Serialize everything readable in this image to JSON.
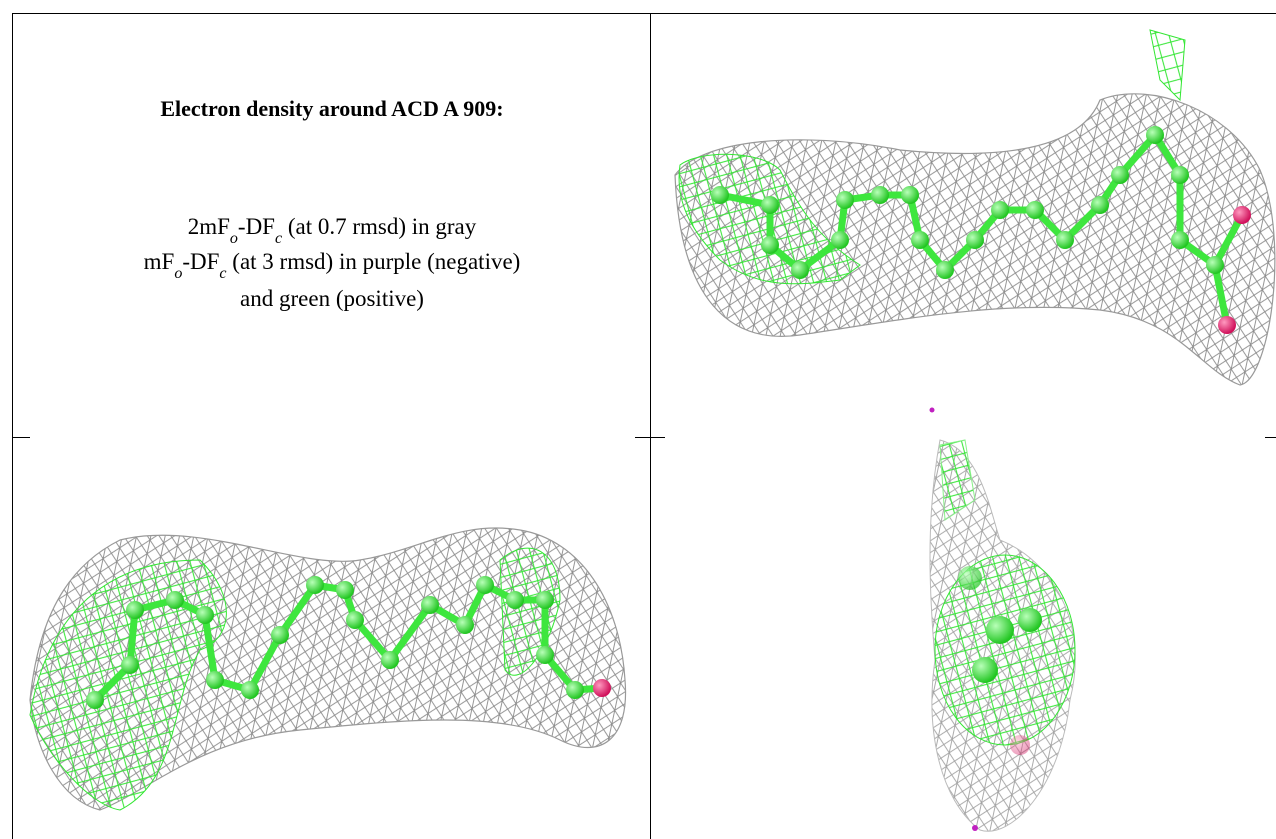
{
  "caption": {
    "title": "Electron density around ACD A 909:",
    "lines": [
      [
        "2mF",
        "o",
        "-DF",
        "c",
        " (at 0.7 rmsd) in gray"
      ],
      [
        "mF",
        "o",
        "-DF",
        "c",
        " (at 3 rmsd) in purple (negative)"
      ],
      [
        "and green (positive)"
      ]
    ]
  }
}
